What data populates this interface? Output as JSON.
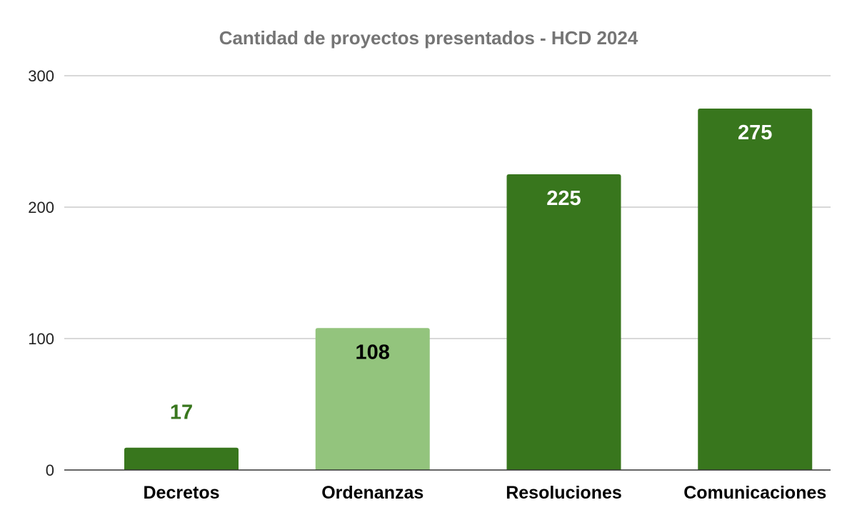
{
  "chart_data": {
    "type": "bar",
    "title": "Cantidad de proyectos presentados - HCD 2024",
    "xlabel": "",
    "ylabel": "",
    "categories": [
      "Decretos",
      "Ordenanzas",
      "Resoluciones",
      "Comunicaciones"
    ],
    "values": [
      17,
      108,
      225,
      275
    ],
    "ylim": [
      0,
      300
    ],
    "yticks": [
      "0",
      "100",
      "200",
      "300"
    ],
    "grid": true,
    "legend": "none",
    "colors": [
      "#38761d",
      "#93c47d",
      "#38761d",
      "#38761d"
    ],
    "label_colors": [
      "#38761d",
      "#000000",
      "#ffffff",
      "#ffffff"
    ],
    "label_inside": [
      false,
      true,
      true,
      true
    ]
  }
}
